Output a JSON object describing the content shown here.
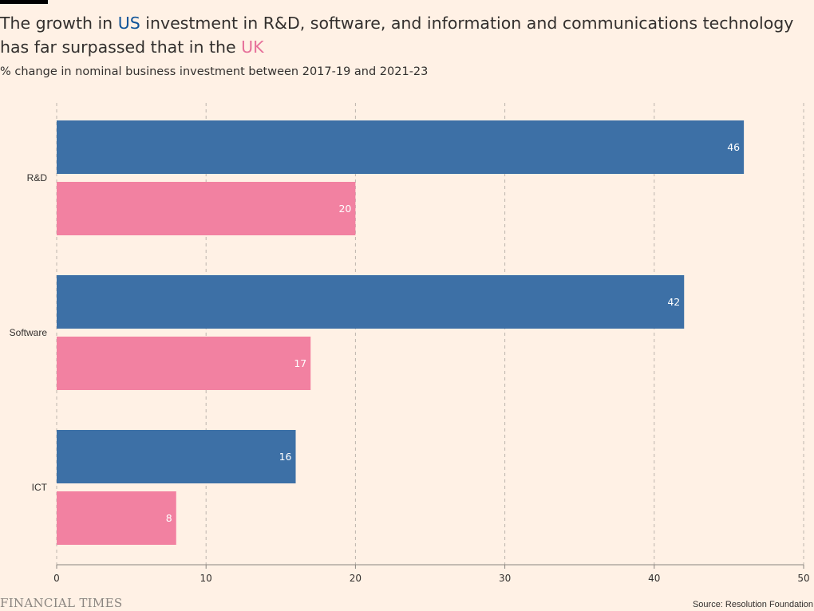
{
  "title": {
    "before_us": "The growth in ",
    "us": "US",
    "middle": " investment in R&D, software, and information and communications technology has far surpassed that in the ",
    "uk": "UK"
  },
  "subtitle": "% change in nominal business investment between 2017-19 and 2021-23",
  "source": "Source: Resolution Foundation",
  "brand": "FINANCIAL TIMES",
  "colors": {
    "us": "#3d70a6",
    "uk": "#f281a1",
    "background": "#fff1e5"
  },
  "chart_data": {
    "type": "bar",
    "orientation": "horizontal",
    "categories": [
      "R&D",
      "Software",
      "ICT"
    ],
    "series": [
      {
        "name": "US",
        "values": [
          46,
          42,
          16
        ]
      },
      {
        "name": "UK",
        "values": [
          20,
          17,
          8
        ]
      }
    ],
    "xlim": [
      0,
      50
    ],
    "xticks": [
      0,
      10,
      20,
      30,
      40,
      50
    ],
    "grid": "vertical dashed",
    "data_labels": true
  }
}
